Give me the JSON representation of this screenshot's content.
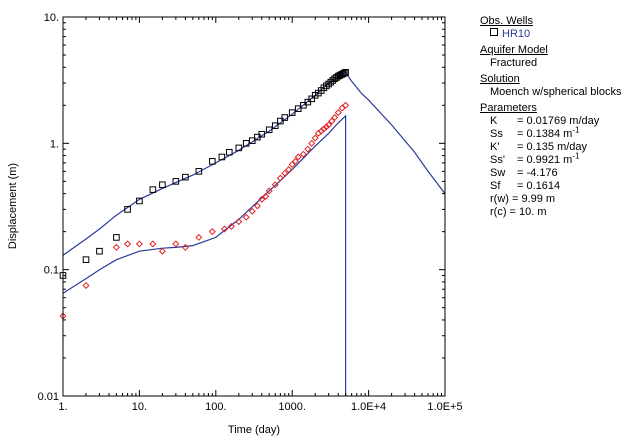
{
  "chart_data": {
    "type": "scatter",
    "xlabel": "Time (day)",
    "ylabel": "Displacement (m)",
    "x_scale": "log",
    "y_scale": "log",
    "xlim": [
      1,
      100000
    ],
    "ylim": [
      0.01,
      10
    ],
    "x_tick_labels": [
      "1.",
      "10.",
      "100.",
      "1000.",
      "1.0E+4",
      "1.0E+5"
    ],
    "y_tick_labels": [
      "0.01",
      "0.1",
      "1.",
      "10."
    ],
    "grid": false,
    "legend_position": "right",
    "series": [
      {
        "name": "HR10",
        "marker": "square",
        "color": "#000000",
        "x": [
          1,
          2,
          3,
          5,
          7,
          10,
          15,
          20,
          30,
          40,
          60,
          90,
          120,
          150,
          200,
          250,
          300,
          350,
          400,
          500,
          600,
          700,
          800,
          1000,
          1200,
          1400,
          1600,
          1800,
          2000,
          2200,
          2400,
          2600,
          2800,
          3000,
          3200,
          3400,
          3600,
          3800,
          4000,
          4200,
          4400,
          4600,
          4800,
          5000
        ],
        "y": [
          0.09,
          0.12,
          0.14,
          0.18,
          0.3,
          0.35,
          0.43,
          0.47,
          0.5,
          0.54,
          0.6,
          0.72,
          0.78,
          0.85,
          0.92,
          1.0,
          1.05,
          1.12,
          1.18,
          1.28,
          1.38,
          1.5,
          1.6,
          1.75,
          1.88,
          2.0,
          2.12,
          2.25,
          2.4,
          2.5,
          2.62,
          2.75,
          2.85,
          2.95,
          3.05,
          3.15,
          3.25,
          3.32,
          3.4,
          3.45,
          3.5,
          3.55,
          3.6,
          3.65
        ]
      },
      {
        "marker": "diamond",
        "color": "#e02020",
        "x": [
          1,
          2,
          5,
          7,
          10,
          15,
          20,
          30,
          40,
          60,
          90,
          130,
          160,
          200,
          250,
          300,
          350,
          400,
          450,
          500,
          600,
          700,
          800,
          900,
          1000,
          1100,
          1200,
          1400,
          1600,
          1800,
          2000,
          2200,
          2400,
          2600,
          2800,
          3000,
          3300,
          3600,
          4000,
          4500,
          5000
        ],
        "y": [
          0.043,
          0.075,
          0.15,
          0.16,
          0.16,
          0.16,
          0.14,
          0.16,
          0.15,
          0.18,
          0.2,
          0.21,
          0.22,
          0.24,
          0.26,
          0.29,
          0.32,
          0.36,
          0.38,
          0.42,
          0.47,
          0.53,
          0.58,
          0.62,
          0.68,
          0.72,
          0.78,
          0.82,
          0.9,
          1.0,
          1.1,
          1.2,
          1.25,
          1.3,
          1.35,
          1.4,
          1.5,
          1.6,
          1.75,
          1.9,
          2.0
        ]
      }
    ],
    "model_curves": [
      {
        "color": "#2b3b9b",
        "x": [
          1,
          2,
          3,
          5,
          10,
          20,
          50,
          100,
          200,
          500,
          1000,
          2000,
          3000,
          4000,
          5000,
          5000,
          6000,
          8000,
          10000,
          20000,
          40000,
          60000,
          100000
        ],
        "y": [
          0.13,
          0.175,
          0.21,
          0.27,
          0.36,
          0.44,
          0.56,
          0.7,
          0.88,
          1.25,
          1.7,
          2.4,
          3.0,
          3.4,
          3.65,
          3.65,
          3.1,
          2.5,
          2.2,
          1.4,
          0.85,
          0.6,
          0.4
        ]
      },
      {
        "color": "#2b3b9b",
        "x": [
          1,
          2,
          3,
          5,
          10,
          20,
          30,
          50,
          100,
          200,
          500,
          1000,
          2000,
          3000,
          4000,
          5000,
          5000
        ],
        "y": [
          0.065,
          0.085,
          0.1,
          0.12,
          0.14,
          0.148,
          0.15,
          0.155,
          0.18,
          0.25,
          0.42,
          0.62,
          0.95,
          1.2,
          1.45,
          1.65,
          0.01
        ]
      }
    ]
  },
  "legend": {
    "obs_wells_header": "Obs. Wells",
    "obs_well_name": "HR10",
    "aquifer_header": "Aquifer Model",
    "aquifer_value": "Fractured",
    "solution_header": "Solution",
    "solution_value": "Moench w/spherical blocks",
    "parameters_header": "Parameters",
    "params": {
      "K_key": "K",
      "K_val": "= 0.01769 m/day",
      "Ss_key": "Ss",
      "Ss_val": "= 0.1384 m",
      "Ss_unit_exp": "-1",
      "Kp_key": "K'",
      "Kp_val": "= 0.135 m/day",
      "Ssp_key": "Ss'",
      "Ssp_val": "= 0.9921 m",
      "Ssp_unit_exp": "-1",
      "Sw_key": "Sw",
      "Sw_val": "= -4.176",
      "Sf_key": "Sf",
      "Sf_val": "= 0.1614",
      "rw_text": "r(w) = 9.99 m",
      "rc_text": "r(c) = 10. m"
    }
  }
}
